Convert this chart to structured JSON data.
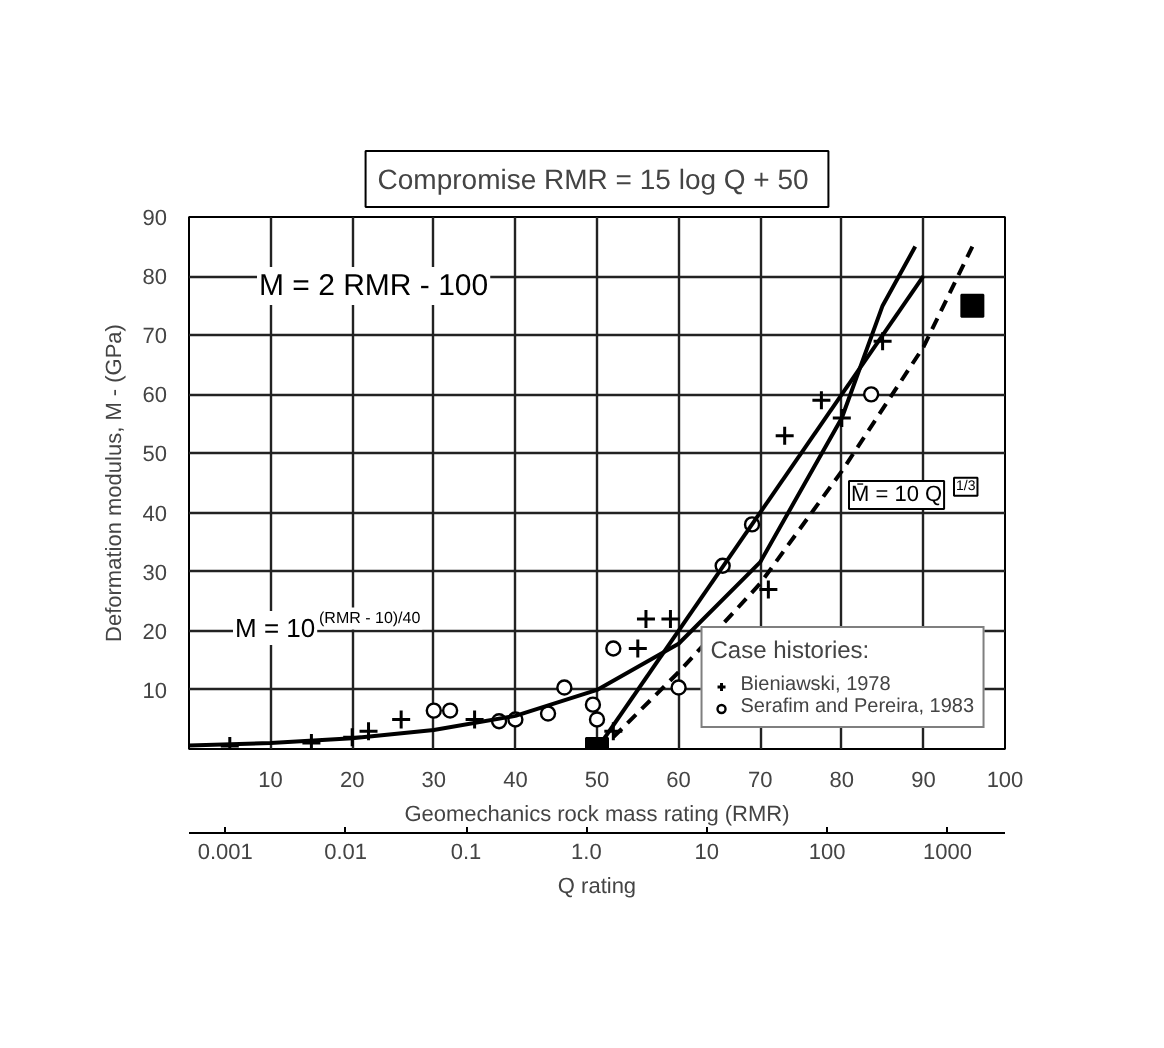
{
  "chart_data": {
    "type": "scatter",
    "xlabel": "Geomechanics rock mass rating (RMR)",
    "ylabel": "Deformation modulus, M - (GPa)",
    "x2label": "Q rating",
    "xlim": [
      0,
      100
    ],
    "ylim": [
      0,
      90
    ],
    "xticks": [
      10,
      20,
      30,
      40,
      50,
      60,
      70,
      80,
      90,
      100
    ],
    "yticks": [
      10,
      20,
      30,
      40,
      50,
      60,
      70,
      80,
      90
    ],
    "x2lim": [
      0.0005,
      3000
    ],
    "x2ticks": [
      0.001,
      0.01,
      0.1,
      {
        "value": 1,
        "label": "1.0"
      },
      10,
      100,
      1000
    ],
    "log": "x2",
    "grid": true,
    "legend": "bottom right",
    "legend_title": "Case histories:",
    "series": [
      {
        "name": "Bieniawski, 1978",
        "marker": "cross",
        "color": "#000000",
        "x": [
          5,
          15,
          20,
          22,
          26,
          35,
          50,
          52,
          55,
          56,
          59,
          71,
          73,
          77.5,
          80,
          85
        ],
        "values": [
          0.5,
          1,
          2,
          3,
          5,
          5,
          null,
          3,
          17,
          22,
          22,
          27,
          53,
          59,
          56,
          69
        ]
      },
      {
        "name": "Serafim and Pereira, 1983",
        "marker": "circle",
        "color": "#000000",
        "x": [
          30,
          32,
          38,
          40,
          44,
          46,
          49.5,
          50,
          52,
          60,
          65.4,
          69,
          83.6
        ],
        "values": [
          6.5,
          6.5,
          4.7,
          5,
          6,
          10.4,
          7.5,
          5,
          17,
          10.4,
          31,
          38,
          60
        ]
      },
      {
        "type": "line",
        "line_style": "solid",
        "color": "#000000",
        "x": [
          50,
          90
        ],
        "values": [
          0,
          80
        ]
      },
      {
        "type": "line",
        "line_style": "solid",
        "color": "#000000",
        "x": [
          0,
          10,
          20,
          30,
          40,
          50,
          60,
          70,
          80,
          85,
          89
        ],
        "values": [
          0.6,
          1,
          1.8,
          3.2,
          5.6,
          10,
          17.8,
          31.6,
          56,
          75,
          85
        ]
      },
      {
        "type": "line",
        "line_style": "dashed",
        "color": "#000000",
        "x": [
          52,
          60,
          70,
          80,
          90,
          96
        ],
        "values": [
          2,
          13,
          28,
          47,
          68,
          85
        ]
      },
      {
        "marker": "square",
        "color": "#000000",
        "x": [
          50,
          96
        ],
        "values": [
          0,
          75
        ]
      }
    ],
    "annotations": [
      "M = 2 RMR - 100",
      "M = 10$^{(RMR - 10)/40}$",
      "M̄ = 10 Q$^{1/3}$",
      "Compromise  RMR = 15 log Q + 50"
    ]
  }
}
